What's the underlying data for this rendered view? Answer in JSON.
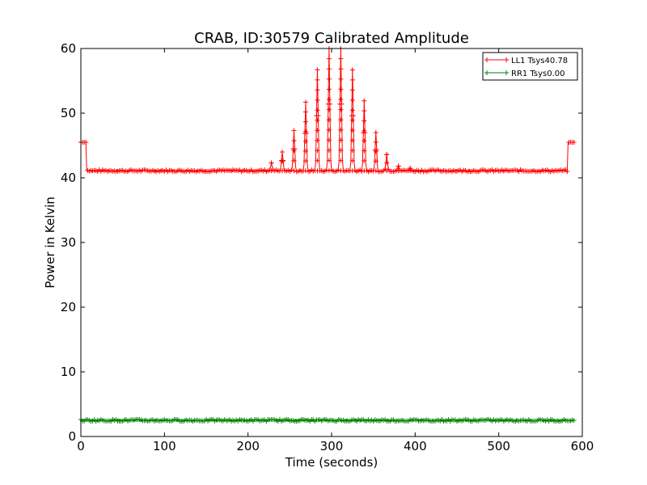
{
  "chart_data": {
    "type": "line",
    "title": "CRAB, ID:30579 Calibrated Amplitude",
    "xlabel": "Time (seconds)",
    "ylabel": "Power in Kelvin",
    "xlim": [
      0,
      600
    ],
    "ylim": [
      0,
      60
    ],
    "xticks": [
      0,
      100,
      200,
      300,
      400,
      500,
      600
    ],
    "yticks": [
      0,
      10,
      20,
      30,
      40,
      50,
      60
    ],
    "grid": false,
    "legend_position": "top-right",
    "series": [
      {
        "name": "LL1 Tsys40.78",
        "color": "#ff0000",
        "marker": "plus",
        "baseline": 41.1,
        "start_spike": {
          "x": [
            0,
            6
          ],
          "value": 45.5
        },
        "end_spike": {
          "x": [
            583,
            590
          ],
          "value": 45.5
        },
        "x_range": [
          0,
          590
        ],
        "pulses": [
          {
            "x": 228,
            "peak": 42.3
          },
          {
            "x": 241,
            "peak": 44.0
          },
          {
            "x": 255,
            "peak": 47.3
          },
          {
            "x": 269,
            "peak": 51.7
          },
          {
            "x": 283,
            "peak": 56.7
          },
          {
            "x": 297,
            "peak": 60.0
          },
          {
            "x": 311,
            "peak": 60.0
          },
          {
            "x": 325,
            "peak": 56.7
          },
          {
            "x": 339,
            "peak": 51.9
          },
          {
            "x": 353,
            "peak": 47.0
          },
          {
            "x": 366,
            "peak": 43.6
          },
          {
            "x": 380,
            "peak": 41.8
          },
          {
            "x": 394,
            "peak": 41.5
          }
        ]
      },
      {
        "name": "RR1 Tsys0.00",
        "color": "#008000",
        "marker": "plus",
        "baseline": 2.5,
        "x_range": [
          0,
          590
        ]
      }
    ]
  }
}
